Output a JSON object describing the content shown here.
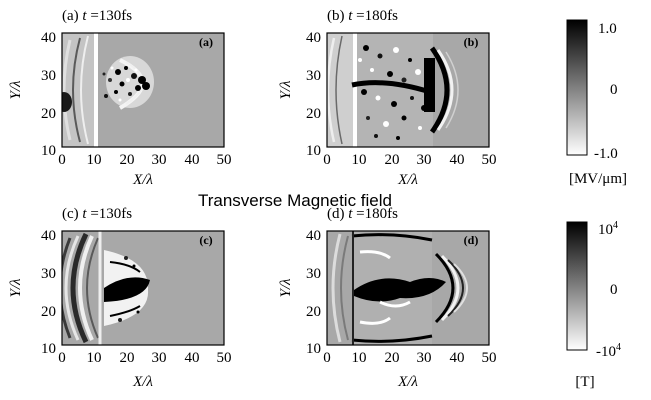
{
  "panels": [
    {
      "title_prefix": "(a) ",
      "title_var": "t",
      "title_suffix": " =130fs",
      "tag": "(a)",
      "x_ticks": [
        "0",
        "10",
        "20",
        "30",
        "40",
        "50"
      ],
      "y_ticks": [
        "40",
        "30",
        "20",
        "10"
      ],
      "xlabel": "X/λ",
      "ylabel": "Y/λ"
    },
    {
      "title_prefix": "(b) ",
      "title_var": "t",
      "title_suffix": " =180fs",
      "tag": "(b)",
      "x_ticks": [
        "0",
        "10",
        "20",
        "30",
        "40",
        "50"
      ],
      "y_ticks": [
        "40",
        "30",
        "20",
        "10"
      ],
      "xlabel": "X/λ",
      "ylabel": "Y/λ"
    },
    {
      "title_prefix": "(c) ",
      "title_var": "t",
      "title_suffix": " =130fs",
      "tag": "(c)",
      "x_ticks": [
        "0",
        "10",
        "20",
        "30",
        "40",
        "50"
      ],
      "y_ticks": [
        "40",
        "30",
        "20",
        "10"
      ],
      "xlabel": "X/λ",
      "ylabel": "Y/λ"
    },
    {
      "title_prefix": "(d) ",
      "title_var": "t",
      "title_suffix": " =180fs",
      "tag": "(d)",
      "x_ticks": [
        "0",
        "10",
        "20",
        "30",
        "40",
        "50"
      ],
      "y_ticks": [
        "40",
        "30",
        "20",
        "10"
      ],
      "xlabel": "X/λ",
      "ylabel": "Y/λ"
    }
  ],
  "section_title": "Transverse Magnetic field",
  "colorbars": [
    {
      "ticks": [
        "1.0",
        "0",
        "-1.0"
      ],
      "unit": "[MV/μm]"
    },
    {
      "tick_top_base": "10",
      "tick_top_exp": "4",
      "tick_mid": "0",
      "tick_bot_base": "-10",
      "tick_bot_exp": "4",
      "unit": "[T]"
    }
  ],
  "colors": {
    "background_field": "#a8a8a8",
    "high": "#000000",
    "low": "#ffffff"
  }
}
